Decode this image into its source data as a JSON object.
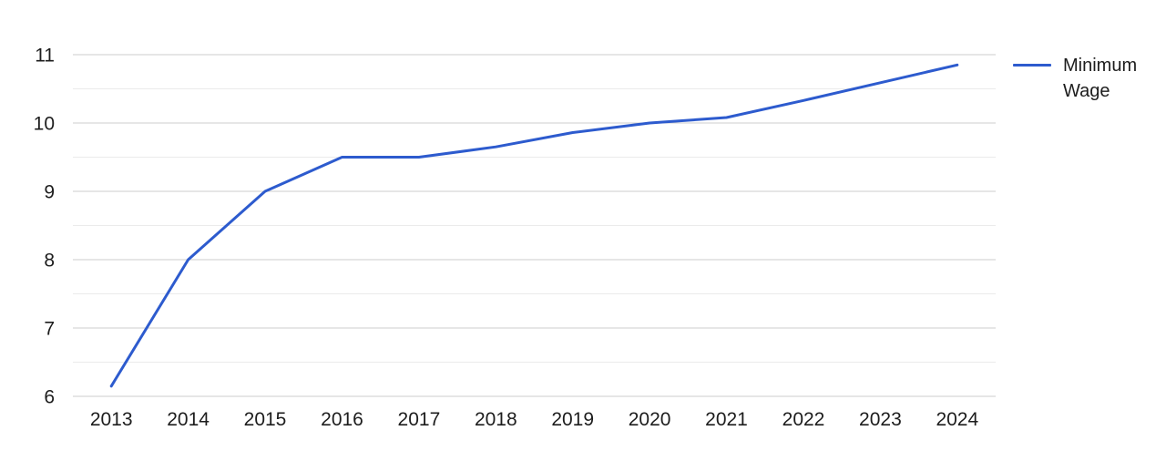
{
  "chart_data": {
    "type": "line",
    "title": "",
    "xlabel": "",
    "ylabel": "",
    "categories": [
      "2013",
      "2014",
      "2015",
      "2016",
      "2017",
      "2018",
      "2019",
      "2020",
      "2021",
      "2022",
      "2023",
      "2024"
    ],
    "series": [
      {
        "name": "Minimum Wage",
        "color": "#2d5bce",
        "values": [
          6.15,
          8.0,
          9.0,
          9.5,
          9.5,
          9.65,
          9.86,
          10.0,
          10.08,
          10.33,
          10.59,
          10.85
        ]
      }
    ],
    "ylim": [
      6,
      11
    ],
    "y_major_ticks": [
      6,
      7,
      8,
      9,
      10,
      11
    ],
    "y_minor_ticks": [
      6.5,
      7.5,
      8.5,
      9.5,
      10.5
    ],
    "grid": "horizontal",
    "legend_position": "right"
  },
  "colors": {
    "background": "#ffffff",
    "line": "#2d5bce",
    "grid_major": "#cccccc",
    "grid_minor": "#ebebeb",
    "label_text": "#1d1d1d"
  }
}
